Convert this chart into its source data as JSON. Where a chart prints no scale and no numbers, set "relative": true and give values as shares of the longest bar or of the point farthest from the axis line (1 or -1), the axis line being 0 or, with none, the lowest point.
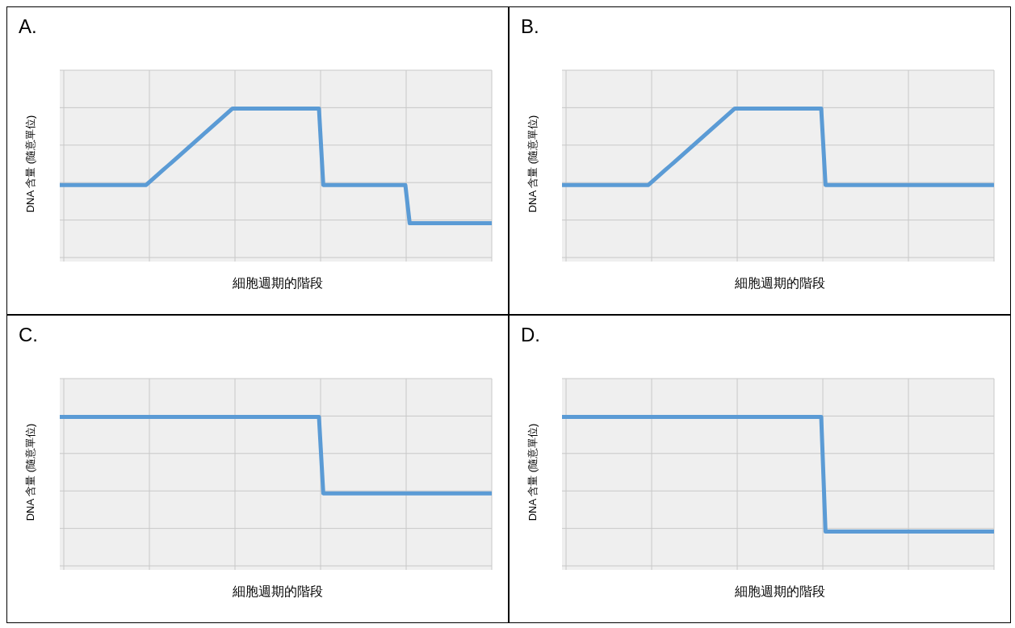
{
  "chart_data": [
    {
      "type": "line",
      "title": "A.",
      "xlabel": "細胞週期的階段",
      "ylabel": "DNA 含量 (隨意單位)",
      "relative": true,
      "grid": true,
      "marker": "none",
      "line_style": "solid",
      "tick_labels": false,
      "categories": [
        null,
        null,
        null,
        null,
        null,
        null,
        null,
        null,
        null,
        null,
        null,
        null,
        null,
        null,
        null,
        null,
        null,
        null,
        null,
        null,
        null,
        null,
        null,
        null,
        null,
        null,
        null,
        null,
        null,
        null,
        null,
        null,
        null,
        null,
        null,
        null,
        null,
        null,
        null,
        null,
        null,
        null,
        null,
        null,
        null,
        null,
        null,
        null,
        null,
        null,
        null,
        null,
        null,
        null,
        null,
        null,
        null,
        null,
        null,
        null,
        null,
        null,
        null,
        null,
        null,
        null,
        null,
        null,
        null,
        null,
        null,
        null,
        null,
        null,
        null,
        null,
        null,
        null,
        null,
        null,
        null,
        null,
        null,
        null,
        null,
        null,
        null,
        null,
        null,
        null,
        null,
        null,
        null,
        null,
        null,
        null,
        null,
        null,
        null,
        null,
        null
      ],
      "series": [
        {
          "color": "#5b9bd5",
          "values": [
            0.5,
            0.5,
            0.5,
            0.5,
            0.5,
            0.5,
            0.5,
            0.5,
            0.5,
            0.5,
            0.5,
            0.5,
            0.5,
            0.5,
            0.5,
            0.5,
            0.5,
            0.5,
            0.5,
            0.5,
            0.5,
            0.525,
            0.55,
            0.575,
            0.6,
            0.625,
            0.65,
            0.675,
            0.7,
            0.725,
            0.75,
            0.775,
            0.8,
            0.825,
            0.85,
            0.875,
            0.9,
            0.925,
            0.95,
            0.975,
            1,
            1,
            1,
            1,
            1,
            1,
            1,
            1,
            1,
            1,
            1,
            1,
            1,
            1,
            1,
            1,
            1,
            1,
            1,
            1,
            1,
            0.5,
            0.5,
            0.5,
            0.5,
            0.5,
            0.5,
            0.5,
            0.5,
            0.5,
            0.5,
            0.5,
            0.5,
            0.5,
            0.5,
            0.5,
            0.5,
            0.5,
            0.5,
            0.5,
            0.5,
            0.25,
            0.25,
            0.25,
            0.25,
            0.25,
            0.25,
            0.25,
            0.25,
            0.25,
            0.25,
            0.25,
            0.25,
            0.25,
            0.25,
            0.25,
            0.25,
            0.25,
            0.25,
            0.25,
            0.25
          ]
        }
      ]
    },
    {
      "type": "line",
      "title": "B.",
      "xlabel": "細胞週期的階段",
      "ylabel": "DNA 含量 (隨意單位)",
      "relative": true,
      "grid": true,
      "marker": "none",
      "line_style": "solid",
      "tick_labels": false,
      "categories": [
        null,
        null,
        null,
        null,
        null,
        null,
        null,
        null,
        null,
        null,
        null,
        null,
        null,
        null,
        null,
        null,
        null,
        null,
        null,
        null,
        null,
        null,
        null,
        null,
        null,
        null,
        null,
        null,
        null,
        null,
        null,
        null,
        null,
        null,
        null,
        null,
        null,
        null,
        null,
        null,
        null,
        null,
        null,
        null,
        null,
        null,
        null,
        null,
        null,
        null,
        null,
        null,
        null,
        null,
        null,
        null,
        null,
        null,
        null,
        null,
        null,
        null,
        null,
        null,
        null,
        null,
        null,
        null,
        null,
        null,
        null,
        null,
        null,
        null,
        null,
        null,
        null,
        null,
        null,
        null,
        null,
        null,
        null,
        null,
        null,
        null,
        null,
        null,
        null,
        null,
        null,
        null,
        null,
        null,
        null,
        null,
        null,
        null,
        null,
        null,
        null
      ],
      "series": [
        {
          "color": "#5b9bd5",
          "values": [
            0.5,
            0.5,
            0.5,
            0.5,
            0.5,
            0.5,
            0.5,
            0.5,
            0.5,
            0.5,
            0.5,
            0.5,
            0.5,
            0.5,
            0.5,
            0.5,
            0.5,
            0.5,
            0.5,
            0.5,
            0.5,
            0.525,
            0.55,
            0.575,
            0.6,
            0.625,
            0.65,
            0.675,
            0.7,
            0.725,
            0.75,
            0.775,
            0.8,
            0.825,
            0.85,
            0.875,
            0.9,
            0.925,
            0.95,
            0.975,
            1,
            1,
            1,
            1,
            1,
            1,
            1,
            1,
            1,
            1,
            1,
            1,
            1,
            1,
            1,
            1,
            1,
            1,
            1,
            1,
            1,
            0.5,
            0.5,
            0.5,
            0.5,
            0.5,
            0.5,
            0.5,
            0.5,
            0.5,
            0.5,
            0.5,
            0.5,
            0.5,
            0.5,
            0.5,
            0.5,
            0.5,
            0.5,
            0.5,
            0.5,
            0.5,
            0.5,
            0.5,
            0.5,
            0.5,
            0.5,
            0.5,
            0.5,
            0.5,
            0.5,
            0.5,
            0.5,
            0.5,
            0.5,
            0.5,
            0.5,
            0.5,
            0.5,
            0.5,
            0.5
          ]
        }
      ]
    },
    {
      "type": "line",
      "title": "C.",
      "xlabel": "細胞週期的階段",
      "ylabel": "DNA 含量 (隨意單位)",
      "relative": true,
      "grid": true,
      "marker": "none",
      "line_style": "solid",
      "tick_labels": false,
      "categories": [
        null,
        null,
        null,
        null,
        null,
        null,
        null,
        null,
        null,
        null,
        null,
        null,
        null,
        null,
        null,
        null,
        null,
        null,
        null,
        null,
        null,
        null,
        null,
        null,
        null,
        null,
        null,
        null,
        null,
        null,
        null,
        null,
        null,
        null,
        null,
        null,
        null,
        null,
        null,
        null,
        null,
        null,
        null,
        null,
        null,
        null,
        null,
        null,
        null,
        null,
        null,
        null,
        null,
        null,
        null,
        null,
        null,
        null,
        null,
        null,
        null,
        null,
        null,
        null,
        null,
        null,
        null,
        null,
        null,
        null,
        null,
        null,
        null,
        null,
        null,
        null,
        null,
        null,
        null,
        null,
        null,
        null,
        null,
        null,
        null,
        null,
        null,
        null,
        null,
        null,
        null,
        null,
        null,
        null,
        null,
        null,
        null,
        null,
        null,
        null,
        null
      ],
      "series": [
        {
          "color": "#5b9bd5",
          "values": [
            1,
            1,
            1,
            1,
            1,
            1,
            1,
            1,
            1,
            1,
            1,
            1,
            1,
            1,
            1,
            1,
            1,
            1,
            1,
            1,
            1,
            1,
            1,
            1,
            1,
            1,
            1,
            1,
            1,
            1,
            1,
            1,
            1,
            1,
            1,
            1,
            1,
            1,
            1,
            1,
            1,
            1,
            1,
            1,
            1,
            1,
            1,
            1,
            1,
            1,
            1,
            1,
            1,
            1,
            1,
            1,
            1,
            1,
            1,
            1,
            1,
            0.5,
            0.5,
            0.5,
            0.5,
            0.5,
            0.5,
            0.5,
            0.5,
            0.5,
            0.5,
            0.5,
            0.5,
            0.5,
            0.5,
            0.5,
            0.5,
            0.5,
            0.5,
            0.5,
            0.5,
            0.5,
            0.5,
            0.5,
            0.5,
            0.5,
            0.5,
            0.5,
            0.5,
            0.5,
            0.5,
            0.5,
            0.5,
            0.5,
            0.5,
            0.5,
            0.5,
            0.5,
            0.5,
            0.5,
            0.5
          ]
        }
      ]
    },
    {
      "type": "line",
      "title": "D.",
      "xlabel": "細胞週期的階段",
      "ylabel": "DNA 含量 (隨意單位)",
      "relative": true,
      "grid": true,
      "marker": "none",
      "line_style": "solid",
      "tick_labels": false,
      "categories": [
        null,
        null,
        null,
        null,
        null,
        null,
        null,
        null,
        null,
        null,
        null,
        null,
        null,
        null,
        null,
        null,
        null,
        null,
        null,
        null,
        null,
        null,
        null,
        null,
        null,
        null,
        null,
        null,
        null,
        null,
        null,
        null,
        null,
        null,
        null,
        null,
        null,
        null,
        null,
        null,
        null,
        null,
        null,
        null,
        null,
        null,
        null,
        null,
        null,
        null,
        null,
        null,
        null,
        null,
        null,
        null,
        null,
        null,
        null,
        null,
        null,
        null,
        null,
        null,
        null,
        null,
        null,
        null,
        null,
        null,
        null,
        null,
        null,
        null,
        null,
        null,
        null,
        null,
        null,
        null,
        null,
        null,
        null,
        null,
        null,
        null,
        null,
        null,
        null,
        null,
        null,
        null,
        null,
        null,
        null,
        null,
        null,
        null,
        null,
        null,
        null
      ],
      "series": [
        {
          "color": "#5b9bd5",
          "values": [
            1,
            1,
            1,
            1,
            1,
            1,
            1,
            1,
            1,
            1,
            1,
            1,
            1,
            1,
            1,
            1,
            1,
            1,
            1,
            1,
            1,
            1,
            1,
            1,
            1,
            1,
            1,
            1,
            1,
            1,
            1,
            1,
            1,
            1,
            1,
            1,
            1,
            1,
            1,
            1,
            1,
            1,
            1,
            1,
            1,
            1,
            1,
            1,
            1,
            1,
            1,
            1,
            1,
            1,
            1,
            1,
            1,
            1,
            1,
            1,
            1,
            0.25,
            0.25,
            0.25,
            0.25,
            0.25,
            0.25,
            0.25,
            0.25,
            0.25,
            0.25,
            0.25,
            0.25,
            0.25,
            0.25,
            0.25,
            0.25,
            0.25,
            0.25,
            0.25,
            0.25,
            0.25,
            0.25,
            0.25,
            0.25,
            0.25,
            0.25,
            0.25,
            0.25,
            0.25,
            0.25,
            0.25,
            0.25,
            0.25,
            0.25,
            0.25,
            0.25,
            0.25,
            0.25,
            0.25,
            0.25
          ]
        }
      ]
    }
  ]
}
